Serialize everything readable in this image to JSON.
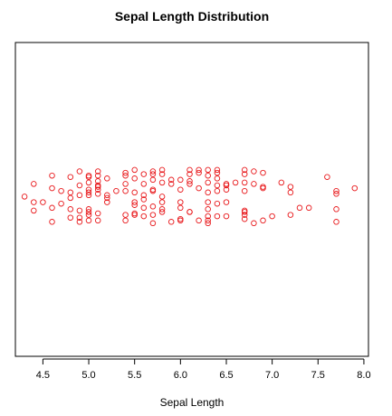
{
  "chart_data": {
    "type": "scatter",
    "subtype": "stripchart-jitter",
    "title": "Sepal Length Distribution",
    "xlabel": "Sepal Length",
    "ylabel": "",
    "xlim": [
      4.2,
      8.05
    ],
    "x_ticks": [
      4.5,
      5.0,
      5.5,
      6.0,
      6.5,
      7.0,
      7.5,
      8.0
    ],
    "x_tick_labels": [
      "4.5",
      "5.0",
      "5.5",
      "6.0",
      "6.5",
      "7.0",
      "7.5",
      "8.0"
    ],
    "y_axis_shown": false,
    "grid": false,
    "legend": "none",
    "marker": "open-circle",
    "color": "#e8191c",
    "points": [
      {
        "x": 4.3,
        "jitter": 0.1
      },
      {
        "x": 4.4,
        "jitter": -0.1
      },
      {
        "x": 4.4,
        "jitter": 0.55
      },
      {
        "x": 4.4,
        "jitter": -0.4
      },
      {
        "x": 4.5,
        "jitter": -0.1
      },
      {
        "x": 4.6,
        "jitter": 0.85
      },
      {
        "x": 4.6,
        "jitter": 0.4
      },
      {
        "x": 4.6,
        "jitter": -0.3
      },
      {
        "x": 4.6,
        "jitter": -0.8
      },
      {
        "x": 4.7,
        "jitter": 0.3
      },
      {
        "x": 4.7,
        "jitter": -0.15
      },
      {
        "x": 4.8,
        "jitter": 0.8
      },
      {
        "x": 4.8,
        "jitter": 0.25
      },
      {
        "x": 4.8,
        "jitter": -0.35
      },
      {
        "x": 4.8,
        "jitter": -0.65
      },
      {
        "x": 4.8,
        "jitter": 0.05
      },
      {
        "x": 4.9,
        "jitter": 1.0
      },
      {
        "x": 4.9,
        "jitter": 0.5
      },
      {
        "x": 4.9,
        "jitter": 0.15
      },
      {
        "x": 4.9,
        "jitter": -0.4
      },
      {
        "x": 4.9,
        "jitter": -0.65
      },
      {
        "x": 4.9,
        "jitter": -0.8
      },
      {
        "x": 5.0,
        "jitter": 0.85
      },
      {
        "x": 5.0,
        "jitter": 0.8
      },
      {
        "x": 5.0,
        "jitter": 0.35
      },
      {
        "x": 5.0,
        "jitter": 0.25
      },
      {
        "x": 5.0,
        "jitter": 0.15
      },
      {
        "x": 5.0,
        "jitter": -0.35
      },
      {
        "x": 5.0,
        "jitter": -0.45
      },
      {
        "x": 5.0,
        "jitter": -0.75
      },
      {
        "x": 5.0,
        "jitter": 0.6
      },
      {
        "x": 5.0,
        "jitter": -0.55
      },
      {
        "x": 5.1,
        "jitter": 1.0
      },
      {
        "x": 5.1,
        "jitter": 0.85
      },
      {
        "x": 5.1,
        "jitter": 0.65
      },
      {
        "x": 5.1,
        "jitter": 0.5
      },
      {
        "x": 5.1,
        "jitter": 0.45
      },
      {
        "x": 5.1,
        "jitter": 0.2
      },
      {
        "x": 5.1,
        "jitter": -0.5
      },
      {
        "x": 5.1,
        "jitter": -0.75
      },
      {
        "x": 5.1,
        "jitter": 0.35
      },
      {
        "x": 5.2,
        "jitter": 0.75
      },
      {
        "x": 5.2,
        "jitter": 0.15
      },
      {
        "x": 5.2,
        "jitter": -0.1
      },
      {
        "x": 5.2,
        "jitter": 0.05
      },
      {
        "x": 5.3,
        "jitter": 0.3
      },
      {
        "x": 5.4,
        "jitter": 0.95
      },
      {
        "x": 5.4,
        "jitter": 0.85
      },
      {
        "x": 5.4,
        "jitter": 0.55
      },
      {
        "x": 5.4,
        "jitter": 0.3
      },
      {
        "x": 5.4,
        "jitter": -0.55
      },
      {
        "x": 5.4,
        "jitter": -0.75
      },
      {
        "x": 5.5,
        "jitter": 1.05
      },
      {
        "x": 5.5,
        "jitter": 0.75
      },
      {
        "x": 5.5,
        "jitter": 0.25
      },
      {
        "x": 5.5,
        "jitter": -0.1
      },
      {
        "x": 5.5,
        "jitter": -0.2
      },
      {
        "x": 5.5,
        "jitter": -0.5
      },
      {
        "x": 5.5,
        "jitter": -0.55
      },
      {
        "x": 5.6,
        "jitter": 0.9
      },
      {
        "x": 5.6,
        "jitter": 0.55
      },
      {
        "x": 5.6,
        "jitter": 0.0
      },
      {
        "x": 5.6,
        "jitter": -0.3
      },
      {
        "x": 5.6,
        "jitter": -0.6
      },
      {
        "x": 5.6,
        "jitter": 0.15
      },
      {
        "x": 5.7,
        "jitter": 1.0
      },
      {
        "x": 5.7,
        "jitter": 0.9
      },
      {
        "x": 5.7,
        "jitter": 0.7
      },
      {
        "x": 5.7,
        "jitter": 0.35
      },
      {
        "x": 5.7,
        "jitter": 0.3
      },
      {
        "x": 5.7,
        "jitter": -0.25
      },
      {
        "x": 5.7,
        "jitter": -0.55
      },
      {
        "x": 5.7,
        "jitter": -0.85
      },
      {
        "x": 5.8,
        "jitter": 1.05
      },
      {
        "x": 5.8,
        "jitter": 0.9
      },
      {
        "x": 5.8,
        "jitter": 0.6
      },
      {
        "x": 5.8,
        "jitter": 0.1
      },
      {
        "x": 5.8,
        "jitter": -0.1
      },
      {
        "x": 5.8,
        "jitter": -0.35
      },
      {
        "x": 5.8,
        "jitter": -0.45
      },
      {
        "x": 5.9,
        "jitter": 0.7
      },
      {
        "x": 5.9,
        "jitter": 0.55
      },
      {
        "x": 5.9,
        "jitter": -0.8
      },
      {
        "x": 6.0,
        "jitter": 0.7
      },
      {
        "x": 6.0,
        "jitter": 0.35
      },
      {
        "x": 6.0,
        "jitter": -0.1
      },
      {
        "x": 6.0,
        "jitter": -0.3
      },
      {
        "x": 6.0,
        "jitter": -0.7
      },
      {
        "x": 6.0,
        "jitter": -0.75
      },
      {
        "x": 6.1,
        "jitter": 1.05
      },
      {
        "x": 6.1,
        "jitter": 0.9
      },
      {
        "x": 6.1,
        "jitter": 0.65
      },
      {
        "x": 6.1,
        "jitter": 0.55
      },
      {
        "x": 6.1,
        "jitter": -0.45
      },
      {
        "x": 6.1,
        "jitter": -0.45
      },
      {
        "x": 6.2,
        "jitter": 1.05
      },
      {
        "x": 6.2,
        "jitter": 0.95
      },
      {
        "x": 6.2,
        "jitter": 0.4
      },
      {
        "x": 6.2,
        "jitter": -0.75
      },
      {
        "x": 6.3,
        "jitter": 1.05
      },
      {
        "x": 6.3,
        "jitter": 0.85
      },
      {
        "x": 6.3,
        "jitter": 0.6
      },
      {
        "x": 6.3,
        "jitter": 0.25
      },
      {
        "x": 6.3,
        "jitter": -0.1
      },
      {
        "x": 6.3,
        "jitter": -0.35
      },
      {
        "x": 6.3,
        "jitter": -0.6
      },
      {
        "x": 6.3,
        "jitter": -0.75
      },
      {
        "x": 6.3,
        "jitter": -0.85
      },
      {
        "x": 6.4,
        "jitter": 1.05
      },
      {
        "x": 6.4,
        "jitter": 0.95
      },
      {
        "x": 6.4,
        "jitter": 0.75
      },
      {
        "x": 6.4,
        "jitter": 0.5
      },
      {
        "x": 6.4,
        "jitter": 0.3
      },
      {
        "x": 6.4,
        "jitter": -0.15
      },
      {
        "x": 6.4,
        "jitter": -0.6
      },
      {
        "x": 6.5,
        "jitter": 0.55
      },
      {
        "x": 6.5,
        "jitter": 0.35
      },
      {
        "x": 6.5,
        "jitter": -0.1
      },
      {
        "x": 6.5,
        "jitter": -0.6
      },
      {
        "x": 6.5,
        "jitter": 0.5
      },
      {
        "x": 6.6,
        "jitter": 0.6
      },
      {
        "x": 6.7,
        "jitter": 1.05
      },
      {
        "x": 6.7,
        "jitter": 0.9
      },
      {
        "x": 6.7,
        "jitter": 0.6
      },
      {
        "x": 6.7,
        "jitter": 0.3
      },
      {
        "x": 6.7,
        "jitter": -0.4
      },
      {
        "x": 6.7,
        "jitter": -0.45
      },
      {
        "x": 6.7,
        "jitter": -0.55
      },
      {
        "x": 6.7,
        "jitter": -0.7
      },
      {
        "x": 6.8,
        "jitter": 1.0
      },
      {
        "x": 6.8,
        "jitter": 0.55
      },
      {
        "x": 6.8,
        "jitter": -0.85
      },
      {
        "x": 6.9,
        "jitter": 0.95
      },
      {
        "x": 6.9,
        "jitter": 0.45
      },
      {
        "x": 6.9,
        "jitter": 0.4
      },
      {
        "x": 6.9,
        "jitter": -0.75
      },
      {
        "x": 7.0,
        "jitter": -0.6
      },
      {
        "x": 7.1,
        "jitter": 0.6
      },
      {
        "x": 7.2,
        "jitter": 0.45
      },
      {
        "x": 7.2,
        "jitter": 0.25
      },
      {
        "x": 7.2,
        "jitter": -0.55
      },
      {
        "x": 7.3,
        "jitter": -0.3
      },
      {
        "x": 7.4,
        "jitter": -0.3
      },
      {
        "x": 7.6,
        "jitter": 0.8
      },
      {
        "x": 7.7,
        "jitter": 0.3
      },
      {
        "x": 7.7,
        "jitter": 0.2
      },
      {
        "x": 7.7,
        "jitter": -0.35
      },
      {
        "x": 7.7,
        "jitter": -0.8
      },
      {
        "x": 7.9,
        "jitter": 0.4
      }
    ]
  }
}
